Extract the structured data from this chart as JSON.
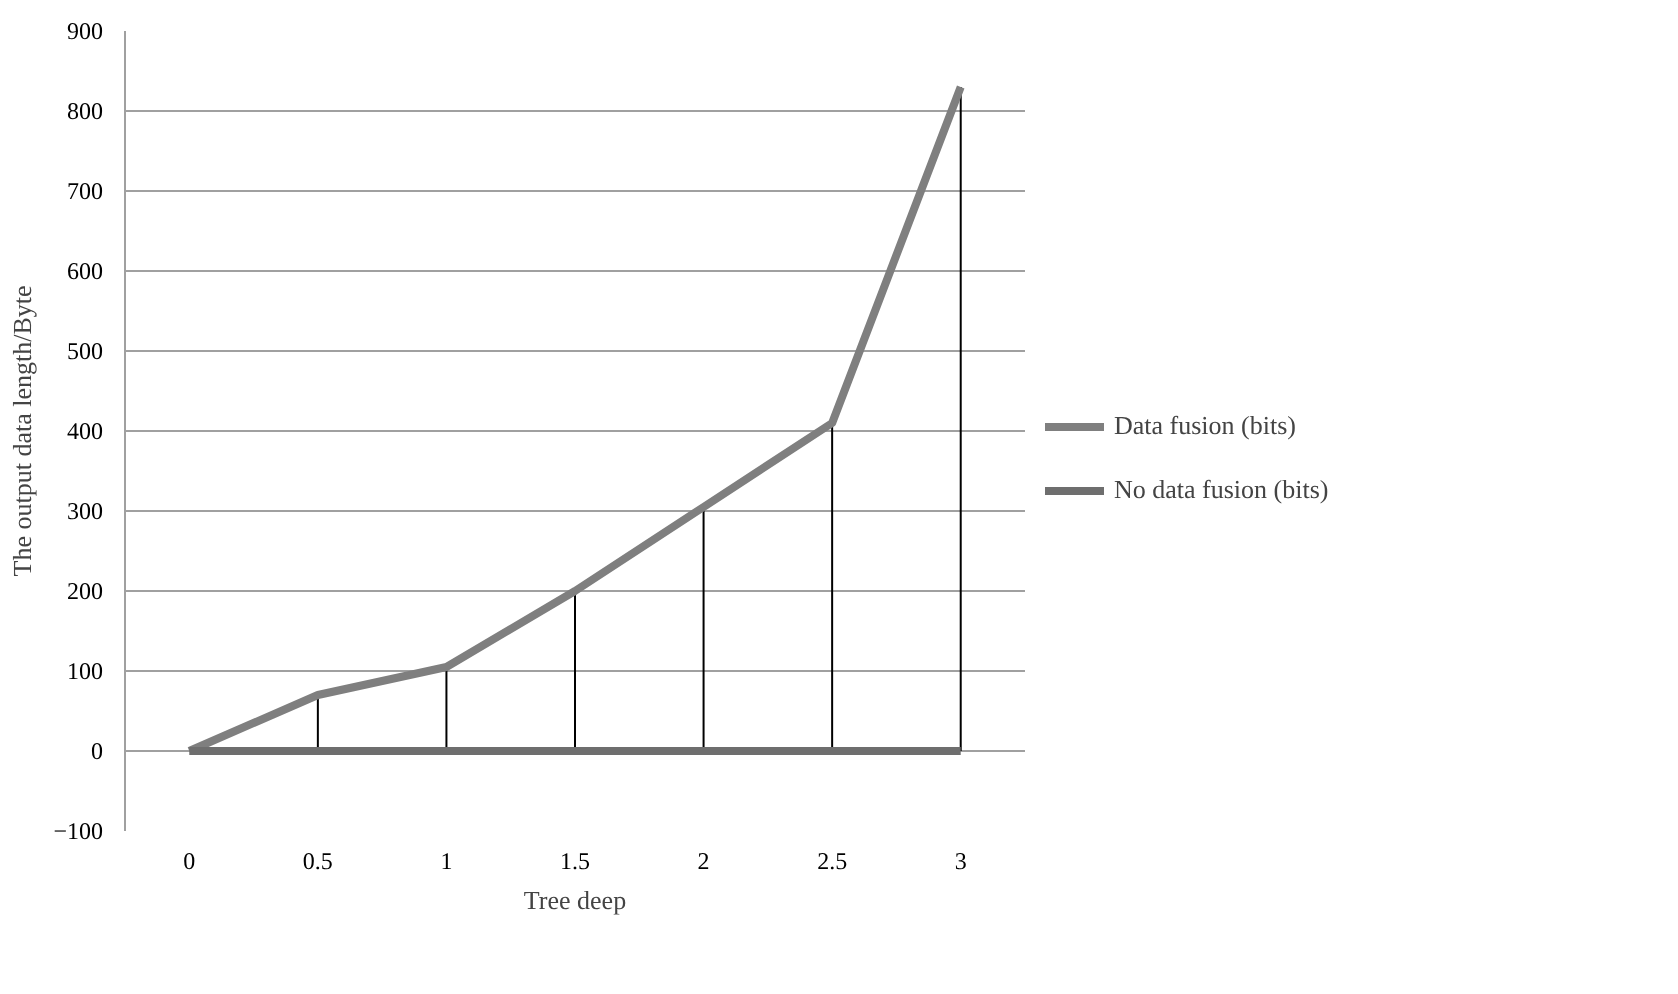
{
  "chart_data": {
    "type": "line",
    "xlabel": "Tree deep",
    "ylabel": "The output data length/Byte",
    "categories": [
      "0",
      "0.5",
      "1",
      "1.5",
      "2",
      "2.5",
      "3"
    ],
    "series": [
      {
        "name": "Data fusion (bits)",
        "color": "#7f7f7f",
        "values": [
          0,
          70,
          105,
          200,
          305,
          410,
          830
        ],
        "errors": [
          null,
          [
            70,
            0
          ],
          [
            105,
            0
          ],
          [
            200,
            0
          ],
          [
            305,
            0
          ],
          [
            410,
            0
          ],
          [
            830,
            0
          ]
        ]
      },
      {
        "name": "No data fusion (bits)",
        "color": "#6e6e6e",
        "values": [
          0,
          0,
          0,
          0,
          0,
          0,
          0
        ]
      }
    ],
    "ylim": [
      -100,
      900
    ],
    "yticks": [
      -100,
      0,
      100,
      200,
      300,
      400,
      500,
      600,
      700,
      800,
      900
    ],
    "grid": "y",
    "legend": "right",
    "marker": "none",
    "line_style": "solid"
  }
}
